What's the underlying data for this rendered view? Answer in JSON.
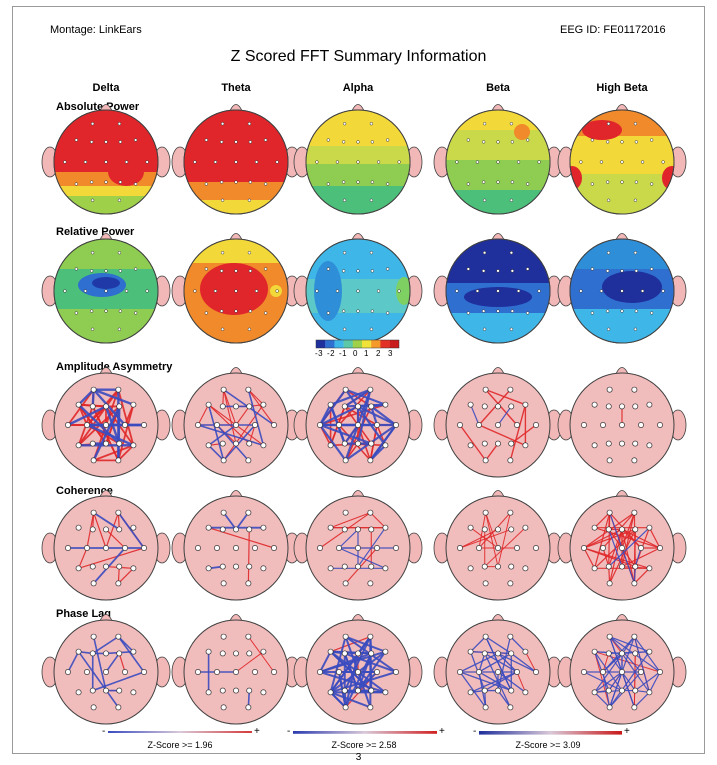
{
  "header": {
    "montage": "Montage:  LinkEars",
    "eeg_id": "EEG ID:  FE01172016",
    "title": "Z Scored FFT Summary Information"
  },
  "bands": [
    "Delta",
    "Theta",
    "Alpha",
    "Beta",
    "High Beta"
  ],
  "sections": {
    "absolute_power": "Absolute Power",
    "relative_power": "Relative Power",
    "amplitude_asymmetry": "Amplitude Asymmetry",
    "coherence": "Coherence",
    "phase_lag": "Phase Lag"
  },
  "colorbar": {
    "labels": [
      "-3",
      "-2",
      "-1",
      "0",
      "1",
      "2",
      "3"
    ],
    "colors": [
      "#1f2f9c",
      "#2f6fd0",
      "#3fb6e8",
      "#5cc8a8",
      "#9fd04a",
      "#f1e23a",
      "#f59a2a",
      "#e23226",
      "#c91c1c"
    ]
  },
  "legends": [
    {
      "label": "Z-Score >= 1.96",
      "minus": "-",
      "plus": "+"
    },
    {
      "label": "Z-Score >= 2.58",
      "minus": "-",
      "plus": "+"
    },
    {
      "label": "Z-Score >= 3.09",
      "minus": "-",
      "plus": "+"
    }
  ],
  "page_number": "3",
  "colors": {
    "red": "#e0282a",
    "blue": "#3a4cc0",
    "head_pink": "#f1bcbc",
    "outline": "#404040"
  }
}
